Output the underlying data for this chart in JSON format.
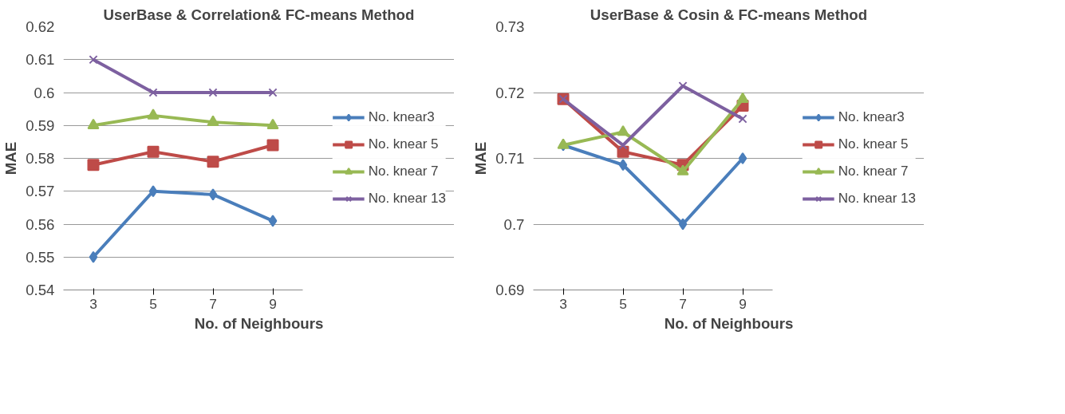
{
  "chart_data": [
    {
      "type": "line",
      "title": "UserBase & Correlation& FC-means Method",
      "xlabel": "No. of Neighbours",
      "ylabel": "MAE",
      "categories": [
        "3",
        "5",
        "7",
        "9"
      ],
      "ylim": [
        0.54,
        0.62
      ],
      "yticks": [
        0.54,
        0.55,
        0.56,
        0.57,
        0.58,
        0.59,
        0.6,
        0.61,
        0.62
      ],
      "grid": "y",
      "legend": "right",
      "series": [
        {
          "name": "No. knear3",
          "color": "#4a7ebb",
          "marker": "diamond",
          "values": [
            0.55,
            0.57,
            0.569,
            0.561
          ]
        },
        {
          "name": "No. knear 5",
          "color": "#be4b48",
          "marker": "square",
          "values": [
            0.578,
            0.582,
            0.579,
            0.584
          ]
        },
        {
          "name": "No. knear 7",
          "color": "#98b954",
          "marker": "triangle",
          "values": [
            0.59,
            0.593,
            0.591,
            0.59
          ]
        },
        {
          "name": "No. knear 13",
          "color": "#7d60a0",
          "marker": "cross",
          "values": [
            0.61,
            0.6,
            0.6,
            0.6
          ]
        }
      ]
    },
    {
      "type": "line",
      "title": "UserBase & Cosin & FC-means Method",
      "xlabel": "No. of Neighbours",
      "ylabel": "MAE",
      "categories": [
        "3",
        "5",
        "7",
        "9"
      ],
      "ylim": [
        0.69,
        0.73
      ],
      "yticks": [
        0.69,
        0.7,
        0.71,
        0.72,
        0.73
      ],
      "grid": "y",
      "legend": "right",
      "series": [
        {
          "name": "No. knear3",
          "color": "#4a7ebb",
          "marker": "diamond",
          "values": [
            0.712,
            0.709,
            0.7,
            0.71
          ]
        },
        {
          "name": "No. knear 5",
          "color": "#be4b48",
          "marker": "square",
          "values": [
            0.719,
            0.711,
            0.709,
            0.718
          ]
        },
        {
          "name": "No. knear 7",
          "color": "#98b954",
          "marker": "triangle",
          "values": [
            0.712,
            0.714,
            0.708,
            0.719
          ]
        },
        {
          "name": "No. knear 13",
          "color": "#7d60a0",
          "marker": "cross",
          "values": [
            0.719,
            0.712,
            0.721,
            0.716
          ]
        }
      ]
    }
  ]
}
